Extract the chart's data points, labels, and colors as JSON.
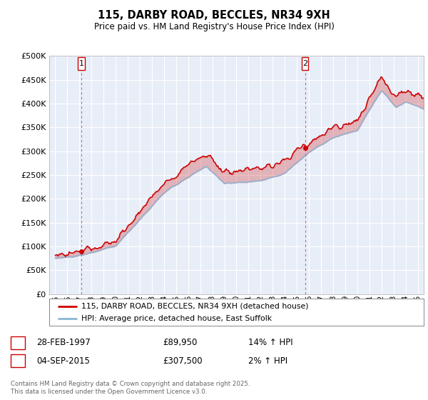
{
  "title": "115, DARBY ROAD, BECCLES, NR34 9XH",
  "subtitle": "Price paid vs. HM Land Registry's House Price Index (HPI)",
  "legend_line1": "115, DARBY ROAD, BECCLES, NR34 9XH (detached house)",
  "legend_line2": "HPI: Average price, detached house, East Suffolk",
  "annotation1_label": "1",
  "annotation1_date": "28-FEB-1997",
  "annotation1_price": "£89,950",
  "annotation1_hpi": "14% ↑ HPI",
  "annotation2_label": "2",
  "annotation2_date": "04-SEP-2015",
  "annotation2_price": "£307,500",
  "annotation2_hpi": "2% ↑ HPI",
  "footer": "Contains HM Land Registry data © Crown copyright and database right 2025.\nThis data is licensed under the Open Government Licence v3.0.",
  "bg_color": "#e8eef8",
  "red_color": "#cc0000",
  "blue_color": "#8ab4d4",
  "ylim": [
    0,
    500000
  ],
  "yticks": [
    0,
    50000,
    100000,
    150000,
    200000,
    250000,
    300000,
    350000,
    400000,
    450000,
    500000
  ],
  "sale1_x": 1997.15,
  "sale1_y": 89950,
  "sale2_x": 2015.67,
  "sale2_y": 307500,
  "xmin": 1994.5,
  "xmax": 2025.5
}
